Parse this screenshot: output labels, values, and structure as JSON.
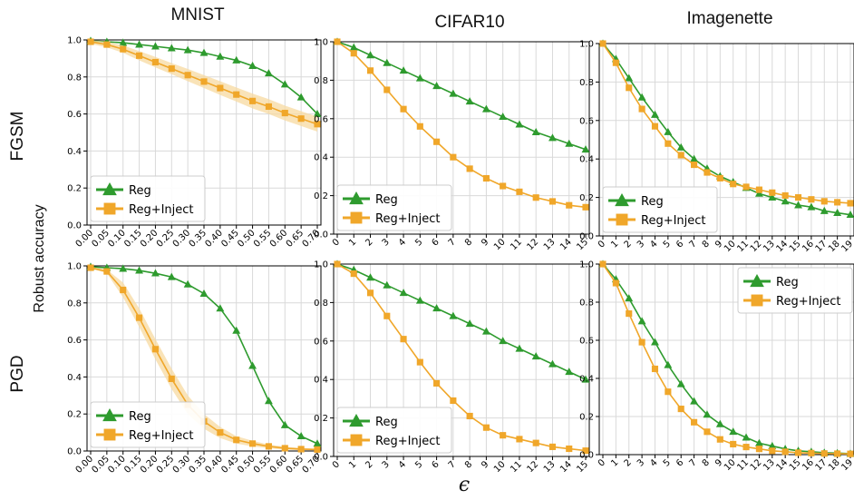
{
  "figure": {
    "columns": [
      "MNIST",
      "CIFAR10",
      "Imagenette"
    ],
    "rows": [
      "FGSM",
      "PGD"
    ],
    "ylabel": "Robust accuracy",
    "xlabel": "ϵ"
  },
  "colors": {
    "reg": "#2e9b2e",
    "inject": "#f0a72a",
    "band": "#f7d9a0"
  },
  "chart_data": [
    {
      "panel": "mnist-fgsm",
      "type": "line",
      "x_tick_labels": [
        "0.00",
        "0.05",
        "0.10",
        "0.15",
        "0.20",
        "0.25",
        "0.30",
        "0.35",
        "0.40",
        "0.45",
        "0.50",
        "0.55",
        "0.60",
        "0.65",
        "0.70"
      ],
      "yticks": [
        "0.0",
        "0.2",
        "0.4",
        "0.6",
        "0.8",
        "1.0"
      ],
      "ylim": [
        0,
        1
      ],
      "legend_position": "lower-left",
      "grid": true,
      "series": [
        {
          "name": "Reg",
          "marker": "triangle",
          "values": [
            0.995,
            0.99,
            0.985,
            0.975,
            0.965,
            0.955,
            0.945,
            0.93,
            0.91,
            0.89,
            0.86,
            0.82,
            0.76,
            0.69,
            0.6
          ]
        },
        {
          "name": "Reg+Inject",
          "marker": "square",
          "values": [
            0.99,
            0.975,
            0.95,
            0.915,
            0.88,
            0.845,
            0.81,
            0.775,
            0.74,
            0.705,
            0.67,
            0.64,
            0.605,
            0.575,
            0.545
          ],
          "band": [
            0.012,
            0.015,
            0.02,
            0.025,
            0.028,
            0.03,
            0.033,
            0.035,
            0.037,
            0.038,
            0.04,
            0.04,
            0.04,
            0.04,
            0.04
          ]
        }
      ]
    },
    {
      "panel": "cifar10-fgsm",
      "type": "line",
      "x_tick_labels": [
        "0",
        "1",
        "2",
        "3",
        "4",
        "5",
        "6",
        "7",
        "8",
        "9",
        "10",
        "11",
        "12",
        "13",
        "14",
        "15"
      ],
      "yticks": [
        "0.0",
        "0.2",
        "0.4",
        "0.6",
        "0.8",
        "1.0"
      ],
      "ylim": [
        0,
        1
      ],
      "legend_position": "lower-left",
      "grid": true,
      "series": [
        {
          "name": "Reg",
          "marker": "triangle",
          "values": [
            1.0,
            0.97,
            0.93,
            0.89,
            0.85,
            0.81,
            0.77,
            0.73,
            0.69,
            0.65,
            0.61,
            0.57,
            0.53,
            0.5,
            0.47,
            0.44
          ]
        },
        {
          "name": "Reg+Inject",
          "marker": "square",
          "values": [
            1.0,
            0.94,
            0.85,
            0.75,
            0.65,
            0.56,
            0.48,
            0.4,
            0.34,
            0.29,
            0.25,
            0.22,
            0.19,
            0.17,
            0.15,
            0.14
          ]
        }
      ]
    },
    {
      "panel": "imagenette-fgsm",
      "type": "line",
      "x_tick_labels": [
        "0",
        "1",
        "2",
        "3",
        "4",
        "5",
        "6",
        "7",
        "8",
        "9",
        "10",
        "11",
        "12",
        "13",
        "14",
        "15",
        "16",
        "17",
        "18",
        "19"
      ],
      "yticks": [
        "0.0",
        "0.2",
        "0.4",
        "0.6",
        "0.8",
        "1.0"
      ],
      "ylim": [
        0,
        1
      ],
      "legend_position": "lower-left",
      "grid": true,
      "series": [
        {
          "name": "Reg",
          "marker": "triangle",
          "values": [
            1.0,
            0.92,
            0.82,
            0.72,
            0.63,
            0.54,
            0.46,
            0.4,
            0.35,
            0.31,
            0.28,
            0.25,
            0.22,
            0.2,
            0.18,
            0.16,
            0.15,
            0.13,
            0.12,
            0.11
          ]
        },
        {
          "name": "Reg+Inject",
          "marker": "square",
          "values": [
            1.0,
            0.9,
            0.77,
            0.66,
            0.57,
            0.48,
            0.42,
            0.37,
            0.33,
            0.3,
            0.27,
            0.255,
            0.24,
            0.225,
            0.21,
            0.2,
            0.19,
            0.18,
            0.175,
            0.17
          ]
        }
      ]
    },
    {
      "panel": "mnist-pgd",
      "type": "line",
      "x_tick_labels": [
        "0.00",
        "0.05",
        "0.10",
        "0.15",
        "0.20",
        "0.25",
        "0.30",
        "0.35",
        "0.40",
        "0.45",
        "0.50",
        "0.55",
        "0.60",
        "0.65",
        "0.70"
      ],
      "yticks": [
        "0.0",
        "0.2",
        "0.4",
        "0.6",
        "0.8",
        "1.0"
      ],
      "ylim": [
        0,
        1
      ],
      "legend_position": "lower-left",
      "grid": true,
      "series": [
        {
          "name": "Reg",
          "marker": "triangle",
          "values": [
            0.995,
            0.99,
            0.985,
            0.975,
            0.96,
            0.94,
            0.9,
            0.85,
            0.77,
            0.65,
            0.46,
            0.27,
            0.14,
            0.08,
            0.04
          ]
        },
        {
          "name": "Reg+Inject",
          "marker": "square",
          "values": [
            0.99,
            0.97,
            0.87,
            0.72,
            0.55,
            0.39,
            0.25,
            0.16,
            0.1,
            0.06,
            0.04,
            0.025,
            0.015,
            0.01,
            0.008
          ],
          "band": [
            0.005,
            0.01,
            0.04,
            0.05,
            0.055,
            0.055,
            0.05,
            0.04,
            0.03,
            0.02,
            0.015,
            0.01,
            0.008,
            0.006,
            0.005
          ]
        }
      ]
    },
    {
      "panel": "cifar10-pgd",
      "type": "line",
      "x_tick_labels": [
        "0",
        "1",
        "2",
        "3",
        "4",
        "5",
        "6",
        "7",
        "8",
        "9",
        "10",
        "11",
        "12",
        "13",
        "14",
        "15"
      ],
      "yticks": [
        "0.0",
        "0.2",
        "0.4",
        "0.6",
        "0.8",
        "1.0"
      ],
      "ylim": [
        0,
        1
      ],
      "legend_position": "lower-left",
      "grid": true,
      "series": [
        {
          "name": "Reg",
          "marker": "triangle",
          "values": [
            1.0,
            0.97,
            0.93,
            0.89,
            0.85,
            0.81,
            0.77,
            0.73,
            0.69,
            0.65,
            0.6,
            0.56,
            0.52,
            0.48,
            0.44,
            0.4
          ]
        },
        {
          "name": "Reg+Inject",
          "marker": "square",
          "values": [
            1.0,
            0.95,
            0.85,
            0.73,
            0.61,
            0.49,
            0.38,
            0.29,
            0.21,
            0.15,
            0.11,
            0.09,
            0.07,
            0.05,
            0.04,
            0.03
          ]
        }
      ]
    },
    {
      "panel": "imagenette-pgd",
      "type": "line",
      "x_tick_labels": [
        "0",
        "1",
        "2",
        "3",
        "4",
        "5",
        "6",
        "7",
        "8",
        "9",
        "10",
        "11",
        "12",
        "13",
        "14",
        "15",
        "16",
        "17",
        "18",
        "19"
      ],
      "yticks": [
        "0.0",
        "0.2",
        "0.4",
        "0.6",
        "0.8",
        "1.0"
      ],
      "ylim": [
        0,
        1
      ],
      "legend_position": "upper-right",
      "grid": true,
      "series": [
        {
          "name": "Reg",
          "marker": "triangle",
          "values": [
            1.0,
            0.92,
            0.82,
            0.7,
            0.59,
            0.47,
            0.37,
            0.28,
            0.21,
            0.16,
            0.12,
            0.09,
            0.06,
            0.045,
            0.03,
            0.02,
            0.015,
            0.01,
            0.008,
            0.005
          ]
        },
        {
          "name": "Reg+Inject",
          "marker": "square",
          "values": [
            1.0,
            0.9,
            0.74,
            0.59,
            0.45,
            0.33,
            0.24,
            0.17,
            0.12,
            0.08,
            0.055,
            0.04,
            0.03,
            0.02,
            0.015,
            0.01,
            0.008,
            0.006,
            0.005,
            0.004
          ]
        }
      ]
    }
  ]
}
